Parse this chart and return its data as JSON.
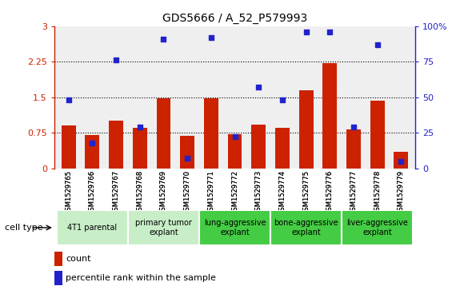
{
  "title": "GDS5666 / A_52_P579993",
  "samples": [
    "GSM1529765",
    "GSM1529766",
    "GSM1529767",
    "GSM1529768",
    "GSM1529769",
    "GSM1529770",
    "GSM1529771",
    "GSM1529772",
    "GSM1529773",
    "GSM1529774",
    "GSM1529775",
    "GSM1529776",
    "GSM1529777",
    "GSM1529778",
    "GSM1529779"
  ],
  "bar_values": [
    0.9,
    0.7,
    1.0,
    0.85,
    1.48,
    0.68,
    1.48,
    0.72,
    0.92,
    0.85,
    1.65,
    2.22,
    0.82,
    1.42,
    0.35
  ],
  "dot_values_pct": [
    48,
    18,
    76,
    29,
    91,
    7,
    92,
    22,
    57,
    48,
    96,
    96,
    29,
    87,
    5
  ],
  "cell_groups": [
    {
      "label": "4T1 parental",
      "start": 0,
      "end": 2,
      "color": "#c8eec8"
    },
    {
      "label": "primary tumor\nexplant",
      "start": 3,
      "end": 5,
      "color": "#c8eec8"
    },
    {
      "label": "lung-aggressive\nexplant",
      "start": 6,
      "end": 8,
      "color": "#44cc44"
    },
    {
      "label": "bone-aggressive\nexplant",
      "start": 9,
      "end": 11,
      "color": "#44cc44"
    },
    {
      "label": "liver-aggressive\nexplant",
      "start": 12,
      "end": 14,
      "color": "#44cc44"
    }
  ],
  "bar_color": "#cc2200",
  "dot_color": "#2222cc",
  "ylim_left": [
    0,
    3.0
  ],
  "ylim_right": [
    0,
    100
  ],
  "yticks_left": [
    0,
    0.75,
    1.5,
    2.25,
    3.0
  ],
  "yticks_right": [
    0,
    25,
    50,
    75,
    100
  ],
  "ytick_labels_left": [
    "0",
    "0.75",
    "1.5",
    "2.25",
    "3"
  ],
  "ytick_labels_right": [
    "0",
    "25",
    "50",
    "75",
    "100%"
  ],
  "hlines": [
    0.75,
    1.5,
    2.25
  ],
  "bg_color": "#efefef",
  "cell_type_label": "cell type",
  "legend_bar_label": "count",
  "legend_dot_label": "percentile rank within the sample"
}
